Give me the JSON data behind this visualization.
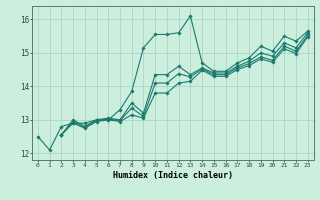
{
  "title": "",
  "xlabel": "Humidex (Indice chaleur)",
  "ylabel": "",
  "background_color": "#cceedd",
  "grid_color": "#aacccc",
  "line_color": "#1a7a6e",
  "xlim": [
    -0.5,
    23.5
  ],
  "ylim": [
    11.8,
    16.4
  ],
  "xticks": [
    0,
    1,
    2,
    3,
    4,
    5,
    6,
    7,
    8,
    9,
    10,
    11,
    12,
    13,
    14,
    15,
    16,
    17,
    18,
    19,
    20,
    21,
    22,
    23
  ],
  "yticks": [
    12,
    13,
    14,
    15,
    16
  ],
  "lines": [
    {
      "x": [
        0,
        1,
        2,
        3,
        4,
        5,
        6,
        7,
        8,
        9,
        10,
        11,
        12,
        13,
        14,
        15,
        16,
        17,
        18,
        19,
        20,
        21,
        22,
        23
      ],
      "y": [
        12.5,
        12.1,
        12.8,
        12.9,
        12.9,
        13.0,
        13.0,
        13.3,
        13.85,
        15.15,
        15.55,
        15.55,
        15.6,
        16.1,
        14.7,
        14.45,
        14.45,
        14.7,
        14.85,
        15.2,
        15.05,
        15.5,
        15.35,
        15.65
      ]
    },
    {
      "x": [
        2,
        3,
        4,
        5,
        6,
        7,
        8,
        9,
        10,
        11,
        12,
        13,
        14,
        15,
        16,
        17,
        18,
        19,
        20,
        21,
        22,
        23
      ],
      "y": [
        12.55,
        13.0,
        12.8,
        13.0,
        13.05,
        13.0,
        13.5,
        13.2,
        14.35,
        14.35,
        14.6,
        14.35,
        14.55,
        14.4,
        14.4,
        14.6,
        14.75,
        15.0,
        14.9,
        15.3,
        15.15,
        15.6
      ]
    },
    {
      "x": [
        2,
        3,
        4,
        5,
        6,
        7,
        8,
        9,
        10,
        11,
        12,
        13,
        14,
        15,
        16,
        17,
        18,
        19,
        20,
        21,
        22,
        23
      ],
      "y": [
        12.55,
        12.95,
        12.78,
        12.98,
        13.02,
        12.98,
        13.35,
        13.1,
        14.1,
        14.1,
        14.38,
        14.28,
        14.52,
        14.35,
        14.35,
        14.55,
        14.68,
        14.88,
        14.78,
        15.2,
        15.05,
        15.52
      ]
    },
    {
      "x": [
        2,
        3,
        4,
        5,
        6,
        7,
        8,
        9,
        10,
        11,
        12,
        13,
        14,
        15,
        16,
        17,
        18,
        19,
        20,
        21,
        22,
        23
      ],
      "y": [
        12.55,
        12.9,
        12.75,
        12.95,
        13.0,
        12.95,
        13.15,
        13.05,
        13.8,
        13.8,
        14.1,
        14.15,
        14.48,
        14.3,
        14.3,
        14.5,
        14.62,
        14.82,
        14.72,
        15.12,
        14.98,
        15.48
      ]
    }
  ]
}
